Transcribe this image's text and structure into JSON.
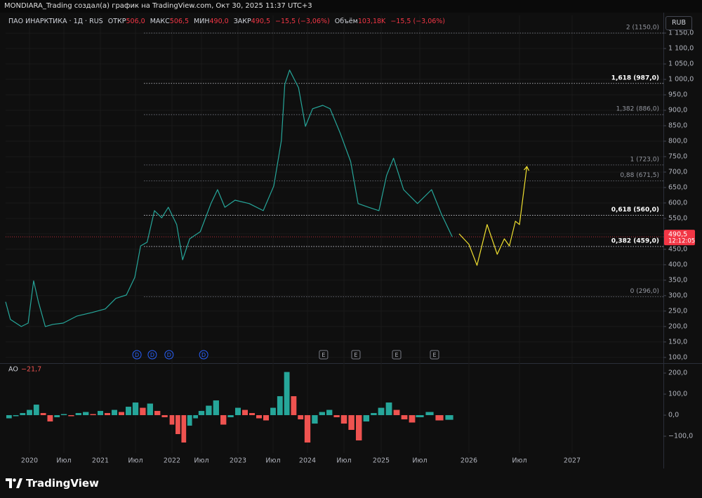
{
  "header": {
    "caption": "MONDIARA_Trading создал(а) график на TradingView.com, Окт 30, 2025 11:37 UTC+3",
    "symbol": "ПАО ИНАРКТИКА · 1Д · RUS",
    "ohlc": [
      {
        "label": "ОТКР",
        "value": "506,0"
      },
      {
        "label": "МАКС",
        "value": "506,5"
      },
      {
        "label": "МИН",
        "value": "490,0"
      },
      {
        "label": "ЗАКР",
        "value": "490,5"
      }
    ],
    "change": "−15,5 (−3,06%)",
    "volume_label": "Объём",
    "volume": "103,18K",
    "volume_change": "−15,5 (−3,06%)",
    "currency": "RUB"
  },
  "chart_data": [
    {
      "type": "line",
      "grid": true,
      "xlim": [
        2019.65,
        2027.87
      ],
      "xticks": [
        {
          "value": 2020,
          "label": "2020"
        },
        {
          "value": 2020.5,
          "label": "Июл"
        },
        {
          "value": 2021,
          "label": "2021"
        },
        {
          "value": 2021.5,
          "label": "Июл"
        },
        {
          "value": 2022,
          "label": "2022"
        },
        {
          "value": 2022.5,
          "label": "Июл"
        },
        {
          "value": 2023,
          "label": "2023"
        },
        {
          "value": 2023.5,
          "label": "Июл"
        },
        {
          "value": 2024,
          "label": "2024"
        },
        {
          "value": 2024.5,
          "label": "Июл"
        },
        {
          "value": 2025,
          "label": "2025"
        },
        {
          "value": 2025.5,
          "label": "Июл"
        },
        {
          "value": 2026,
          "label": "2026"
        },
        {
          "value": 2026.5,
          "label": "Июл"
        },
        {
          "value": 2027,
          "label": "2027"
        }
      ],
      "ylim": [
        86,
        1207
      ],
      "yticks": [
        {
          "value": 100,
          "label": "100,0"
        },
        {
          "value": 150,
          "label": "150,0"
        },
        {
          "value": 200,
          "label": "200,0"
        },
        {
          "value": 250,
          "label": "250,0"
        },
        {
          "value": 300,
          "label": "300,0"
        },
        {
          "value": 350,
          "label": "350,0"
        },
        {
          "value": 400,
          "label": "400,0"
        },
        {
          "value": 450,
          "label": "450,0"
        },
        {
          "value": 500,
          "label": "500,0"
        },
        {
          "value": 550,
          "label": "550,0"
        },
        {
          "value": 600,
          "label": "600,0"
        },
        {
          "value": 650,
          "label": "650,0"
        },
        {
          "value": 700,
          "label": "700,0"
        },
        {
          "value": 750,
          "label": "750,0"
        },
        {
          "value": 800,
          "label": "800,0"
        },
        {
          "value": 850,
          "label": "850,0"
        },
        {
          "value": 900,
          "label": "900,0"
        },
        {
          "value": 950,
          "label": "950,0"
        },
        {
          "value": 1000,
          "label": "1 000,0"
        },
        {
          "value": 1050,
          "label": "1 050,0"
        },
        {
          "value": 1100,
          "label": "1 100,0"
        },
        {
          "value": 1150,
          "label": "1 150,0"
        }
      ],
      "series": [
        {
          "color": "#26a69a",
          "x": [
            2019.65,
            2019.72,
            2019.88,
            2019.98,
            2020.06,
            2020.13,
            2020.23,
            2020.34,
            2020.49,
            2020.68,
            2020.88,
            2021.07,
            2021.22,
            2021.37,
            2021.49,
            2021.57,
            2021.66,
            2021.76,
            2021.86,
            2021.95,
            2022.08,
            2022.18,
            2022.3,
            2022.48,
            2022.63,
            2022.72,
            2022.82,
            2022.96,
            2023.16,
            2023.36,
            2023.51,
            2023.62,
            2023.67,
            2023.74,
            2023.87,
            2023.97,
            2024.07,
            2024.21,
            2024.31,
            2024.45,
            2024.59,
            2024.69,
            2024.83,
            2024.97,
            2025.07,
            2025.16,
            2025.29,
            2025.47,
            2025.62,
            2025.72,
            2025.83
          ],
          "values": [
            280,
            223,
            200,
            211,
            348,
            280,
            200,
            207,
            211,
            234,
            245,
            257,
            291,
            302,
            359,
            461,
            473,
            575,
            552,
            586,
            530,
            416,
            484,
            507,
            598,
            643,
            586,
            609,
            598,
            575,
            655,
            802,
            984,
            1030,
            973,
            848,
            905,
            916,
            905,
            825,
            734,
            598,
            586,
            575,
            689,
            745,
            643,
            598,
            643,
            564,
            490.5
          ]
        },
        {
          "color": "#f0e030",
          "x": [
            2025.9,
            2026,
            2026.08,
            2026.18,
            2026.28,
            2026.35,
            2026.4,
            2026.46,
            2026.5,
            2026.57
          ],
          "values": [
            500,
            466,
            398,
            530,
            434,
            484,
            461,
            541,
            530,
            718
          ]
        }
      ],
      "levels": [
        {
          "value": 1150,
          "label": "2 (1150,0)",
          "bold": false
        },
        {
          "value": 987,
          "label": "1,618 (987,0)",
          "bold": true
        },
        {
          "value": 886,
          "label": "1,382 (886,0)",
          "bold": false
        },
        {
          "value": 723,
          "label": "1 (723,0)",
          "bold": false
        },
        {
          "value": 671.5,
          "label": "0,88 (671,5)",
          "bold": false
        },
        {
          "value": 560,
          "label": "0,618 (560,0)",
          "bold": true
        },
        {
          "value": 459,
          "label": "0,382 (459,0)",
          "bold": true
        },
        {
          "value": 296,
          "label": "0 (296,0)",
          "bold": false
        }
      ],
      "last_price": {
        "value": 490.5,
        "label": "490,5",
        "time": "12:12:05",
        "color": "#f23645"
      },
      "events": [
        {
          "x": 2021.52,
          "label": "D"
        },
        {
          "x": 2021.73,
          "label": "D"
        },
        {
          "x": 2021.96,
          "label": "D"
        },
        {
          "x": 2022.53,
          "label": "D"
        },
        {
          "x": 2024.22,
          "label": "E"
        },
        {
          "x": 2024.66,
          "label": "E"
        },
        {
          "x": 2025.2,
          "label": "E"
        },
        {
          "x": 2025.65,
          "label": "E"
        }
      ]
    },
    {
      "type": "bar",
      "title": "AO",
      "last_value": -21.7,
      "last_label": "−21,7",
      "ylim": [
        -180,
        237
      ],
      "yticks": [
        {
          "value": 200,
          "label": "200,0"
        },
        {
          "value": 100,
          "label": "100,0"
        },
        {
          "value": 0,
          "label": "0,0"
        },
        {
          "value": -100,
          "label": "−100,0"
        }
      ],
      "colors": {
        "rising": "#26a69a",
        "falling": "#ef5350"
      },
      "x": [
        2019.7,
        2019.8,
        2019.9,
        2020.0,
        2020.1,
        2020.2,
        2020.3,
        2020.4,
        2020.5,
        2020.6,
        2020.7,
        2020.8,
        2020.9,
        2021.0,
        2021.1,
        2021.2,
        2021.3,
        2021.4,
        2021.5,
        2021.6,
        2021.7,
        2021.8,
        2021.9,
        2022.0,
        2022.1,
        2022.2,
        2022.3,
        2022.4,
        2022.5,
        2022.6,
        2022.7,
        2022.8,
        2022.9,
        2023.0,
        2023.1,
        2023.2,
        2023.3,
        2023.4,
        2023.5,
        2023.6,
        2023.7,
        2023.8,
        2023.9,
        2024.0,
        2024.1,
        2024.2,
        2024.3,
        2024.4,
        2024.5,
        2024.6,
        2024.7,
        2024.8,
        2024.9,
        2025.0,
        2025.1,
        2025.2,
        2025.3,
        2025.4,
        2025.5,
        2025.6,
        2025.7,
        2025.8
      ],
      "values": [
        -15,
        -5,
        10,
        25,
        50,
        10,
        -30,
        -10,
        5,
        -5,
        10,
        15,
        5,
        20,
        10,
        25,
        15,
        40,
        60,
        35,
        55,
        20,
        -10,
        -45,
        -90,
        -130,
        -50,
        -15,
        20,
        45,
        70,
        -45,
        -10,
        35,
        25,
        10,
        -15,
        -25,
        35,
        90,
        205,
        90,
        -20,
        -130,
        -40,
        15,
        25,
        -10,
        -40,
        -70,
        -120,
        -30,
        10,
        35,
        60,
        25,
        -20,
        -35,
        -10,
        15,
        -25,
        -22
      ]
    }
  ],
  "footer": {
    "brand": "TradingView"
  }
}
